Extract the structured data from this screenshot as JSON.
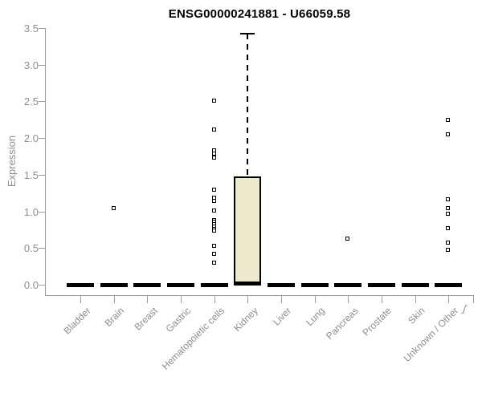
{
  "page": {
    "background": "#ffffff"
  },
  "artifact_glyph": "ʃ",
  "chart_data": {
    "type": "boxplot",
    "title": "ENSG00000241881 - U66059.58",
    "xlabel": "",
    "ylabel": "Expression",
    "ylim": [
      0,
      3.5
    ],
    "y_ticks": [
      "0.0",
      "0.5",
      "1.0",
      "1.5",
      "2.0",
      "2.5",
      "3.0",
      "3.5"
    ],
    "grid": false,
    "legend": false,
    "categories": [
      "Bladder",
      "Brain",
      "Breast",
      "Gastric",
      "Hematopoietic cells",
      "Kidney",
      "Liver",
      "Lung",
      "Pancreas",
      "Prostate",
      "Skin",
      "Unknown / Other"
    ],
    "boxes": [
      {
        "category": "Bladder",
        "q1": 0,
        "median": 0,
        "q3": 0,
        "whisker_low": 0,
        "whisker_high": 0,
        "outliers": []
      },
      {
        "category": "Brain",
        "q1": 0,
        "median": 0,
        "q3": 0,
        "whisker_low": 0,
        "whisker_high": 0,
        "outliers": [
          1.04
        ]
      },
      {
        "category": "Breast",
        "q1": 0,
        "median": 0,
        "q3": 0,
        "whisker_low": 0,
        "whisker_high": 0,
        "outliers": []
      },
      {
        "category": "Gastric",
        "q1": 0,
        "median": 0,
        "q3": 0,
        "whisker_low": 0,
        "whisker_high": 0,
        "outliers": []
      },
      {
        "category": "Hematopoietic cells",
        "q1": 0,
        "median": 0,
        "q3": 0,
        "whisker_low": 0,
        "whisker_high": 0,
        "outliers": [
          2.5,
          2.11,
          1.83,
          1.78,
          1.73,
          1.29,
          1.18,
          1.14,
          1.01,
          0.88,
          0.85,
          0.82,
          0.79,
          0.76,
          0.73,
          0.53,
          0.42,
          0.29
        ]
      },
      {
        "category": "Kidney",
        "q1": 0,
        "median": 0.02,
        "q3": 1.48,
        "whisker_low": 0,
        "whisker_high": 3.42,
        "outliers": []
      },
      {
        "category": "Liver",
        "q1": 0,
        "median": 0,
        "q3": 0,
        "whisker_low": 0,
        "whisker_high": 0,
        "outliers": []
      },
      {
        "category": "Lung",
        "q1": 0,
        "median": 0,
        "q3": 0,
        "whisker_low": 0,
        "whisker_high": 0,
        "outliers": []
      },
      {
        "category": "Pancreas",
        "q1": 0,
        "median": 0,
        "q3": 0,
        "whisker_low": 0,
        "whisker_high": 0,
        "outliers": [
          0.62
        ]
      },
      {
        "category": "Prostate",
        "q1": 0,
        "median": 0,
        "q3": 0,
        "whisker_low": 0,
        "whisker_high": 0,
        "outliers": []
      },
      {
        "category": "Skin",
        "q1": 0,
        "median": 0,
        "q3": 0,
        "whisker_low": 0,
        "whisker_high": 0,
        "outliers": []
      },
      {
        "category": "Unknown / Other",
        "q1": 0,
        "median": 0,
        "q3": 0,
        "whisker_low": 0,
        "whisker_high": 0,
        "outliers": [
          2.24,
          2.04,
          1.16,
          1.04,
          0.96,
          0.77,
          0.57,
          0.47
        ]
      }
    ],
    "colors": {
      "box_fill": "#EDE9CC",
      "box_border": "#000000",
      "whisker": "#000000",
      "outlier": "#000000",
      "axis": "#9b9b9b",
      "tick_label": "#8e8e8e",
      "title": "#000000"
    }
  }
}
